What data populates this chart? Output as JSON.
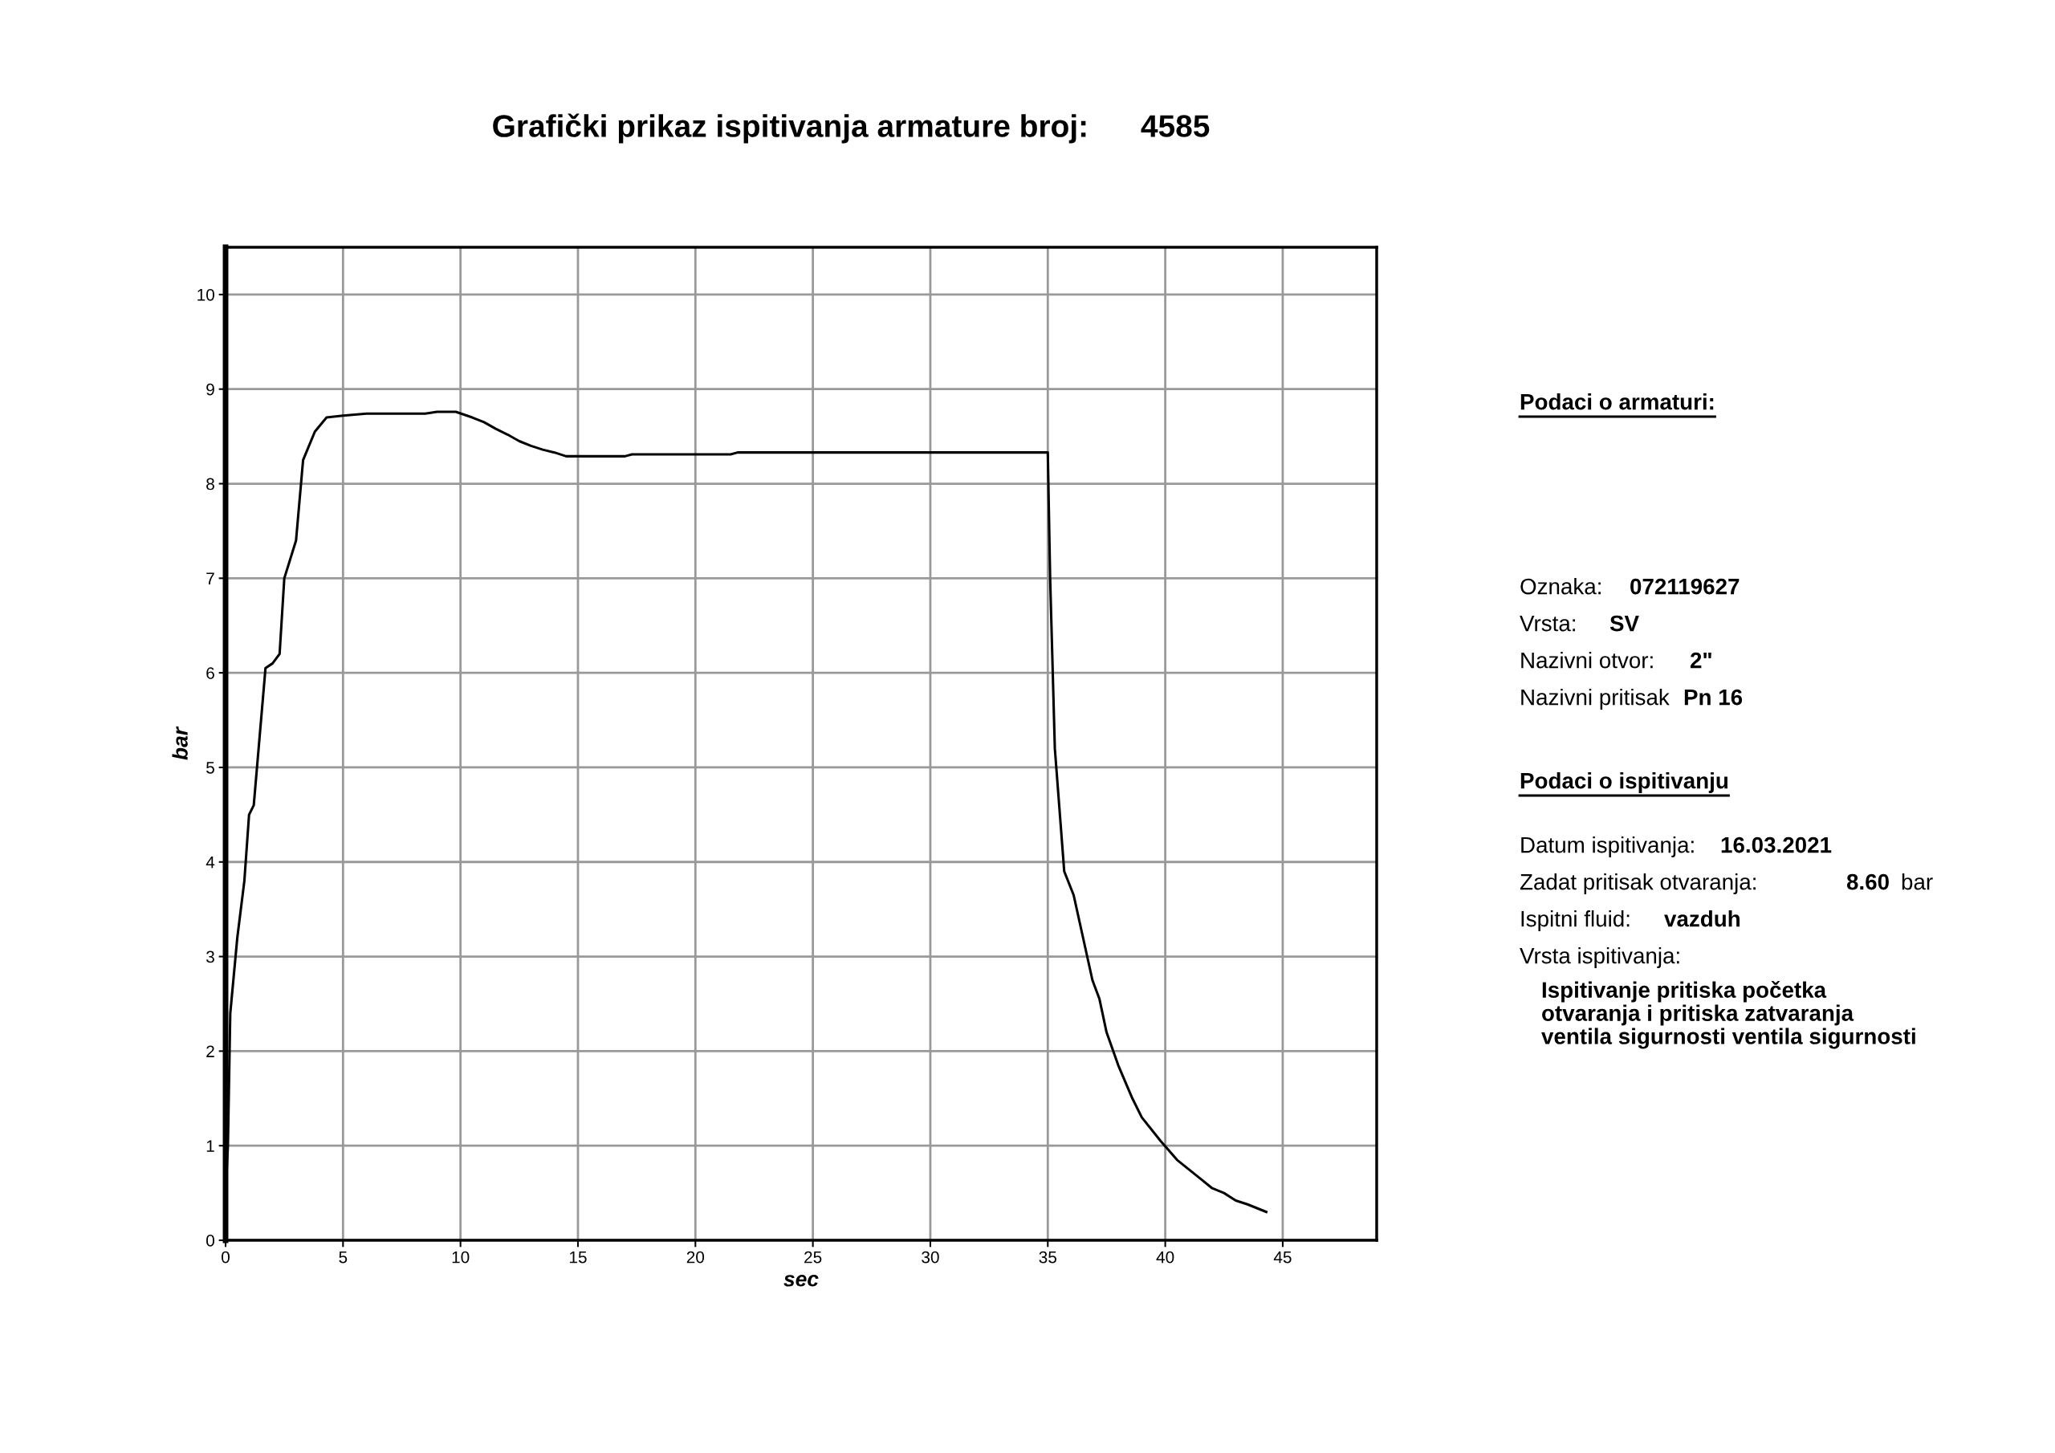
{
  "chart_data": {
    "type": "line",
    "title": "Grafički prikaz ispitivanja armature broj:      4585",
    "xlabel": "sec",
    "ylabel": "bar",
    "x": [
      0,
      0.1,
      0.2,
      0.5,
      0.8,
      1.0,
      1.2,
      1.7,
      2.0,
      2.3,
      2.5,
      3.0,
      3.3,
      3.8,
      4.3,
      5,
      6,
      8.5,
      9,
      9.8,
      10.5,
      11,
      11.5,
      12,
      12.5,
      13,
      13.5,
      14,
      14.5,
      17,
      17.3,
      21.5,
      21.8,
      35,
      35.1,
      35.3,
      35.7,
      36.1,
      36.5,
      36.9,
      37.2,
      37.5,
      38,
      38.6,
      39,
      39.8,
      40.5,
      41,
      41.5,
      42,
      42.5,
      43,
      43.5,
      44.3
    ],
    "series": [
      {
        "color": "#000000",
        "values": [
          0.5,
          1.0,
          2.4,
          3.2,
          3.8,
          4.5,
          4.6,
          6.05,
          6.1,
          6.2,
          7.0,
          7.4,
          8.25,
          8.55,
          8.7,
          8.72,
          8.74,
          8.74,
          8.76,
          8.76,
          8.7,
          8.65,
          8.58,
          8.52,
          8.45,
          8.4,
          8.36,
          8.33,
          8.29,
          8.29,
          8.31,
          8.31,
          8.33,
          8.33,
          7.0,
          5.2,
          3.9,
          3.65,
          3.2,
          2.75,
          2.55,
          2.2,
          1.85,
          1.5,
          1.3,
          1.05,
          0.85,
          0.75,
          0.65,
          0.55,
          0.5,
          0.42,
          0.38,
          0.3
        ]
      }
    ],
    "xlim": [
      0,
      49
    ],
    "xticks": [
      0,
      5,
      10,
      15,
      20,
      25,
      30,
      35,
      40,
      45
    ],
    "ylim": [
      0,
      10.5
    ],
    "yticks": [
      0,
      1,
      2,
      3,
      4,
      5,
      6,
      7,
      8,
      9,
      10
    ],
    "grid": true,
    "marker": "none",
    "line_style": "solid",
    "annotations": [
      "Podaci o armaturi:",
      "Oznaka:",
      "072119627",
      "Vrsta:",
      "SV",
      "Nazivni otvor:",
      "2\"",
      "Nazivni pritisak",
      "Pn 16",
      "Podaci o ispitivanju",
      "Datum ispitivanja:",
      "16.03.2021",
      "Zadat pritisak otvaranja:",
      "8.60",
      "bar",
      "Ispitni fluid:",
      "vazduh",
      "Vrsta ispitivanja:",
      "Ispitivanje pritiska početka\notvaranja i pritiska zatvaranja\nventila sigurnosti ventila sigurnosti"
    ]
  }
}
